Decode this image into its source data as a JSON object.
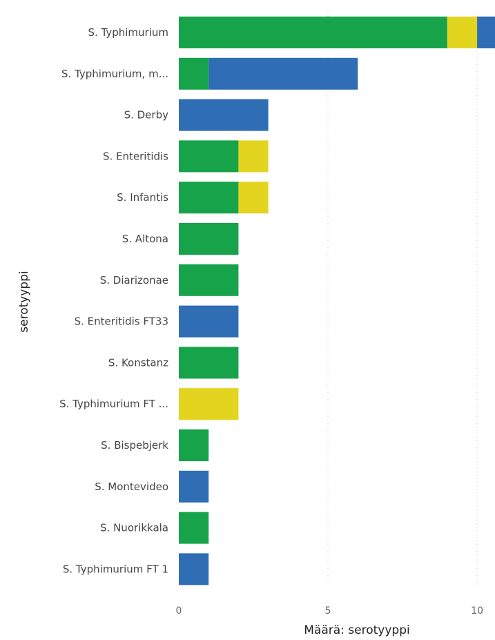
{
  "chart_data": {
    "type": "bar",
    "orientation": "horizontal",
    "stacked": true,
    "title": "",
    "xlabel": "Määrä: serotyyppi",
    "ylabel": "serotyyppi",
    "xlim": [
      0,
      10.6
    ],
    "xticks": [
      0,
      5,
      10
    ],
    "grid": true,
    "categories": [
      "S. Typhimurium",
      "S. Typhimurium, m...",
      "S. Derby",
      "S. Enteritidis",
      "S. Infantis",
      "S. Altona",
      "S. Diarizonae",
      "S. Enteritidis FT33",
      "S. Konstanz",
      "S. Typhimurium FT ...",
      "S. Bispebjerk",
      "S. Montevideo",
      "S. Nuorikkala",
      "S. Typhimurium FT 1"
    ],
    "series": [
      {
        "color": "#16a34a",
        "values": [
          9,
          1,
          0,
          2,
          2,
          2,
          2,
          0,
          2,
          0,
          1,
          0,
          1,
          0
        ]
      },
      {
        "color": "#e3d41f",
        "values": [
          1,
          0,
          0,
          1,
          1,
          0,
          0,
          0,
          0,
          2,
          0,
          0,
          0,
          0
        ]
      },
      {
        "color": "#2f6db5",
        "values": [
          1,
          5,
          3,
          0,
          0,
          0,
          0,
          2,
          0,
          0,
          0,
          1,
          0,
          1
        ]
      }
    ]
  }
}
